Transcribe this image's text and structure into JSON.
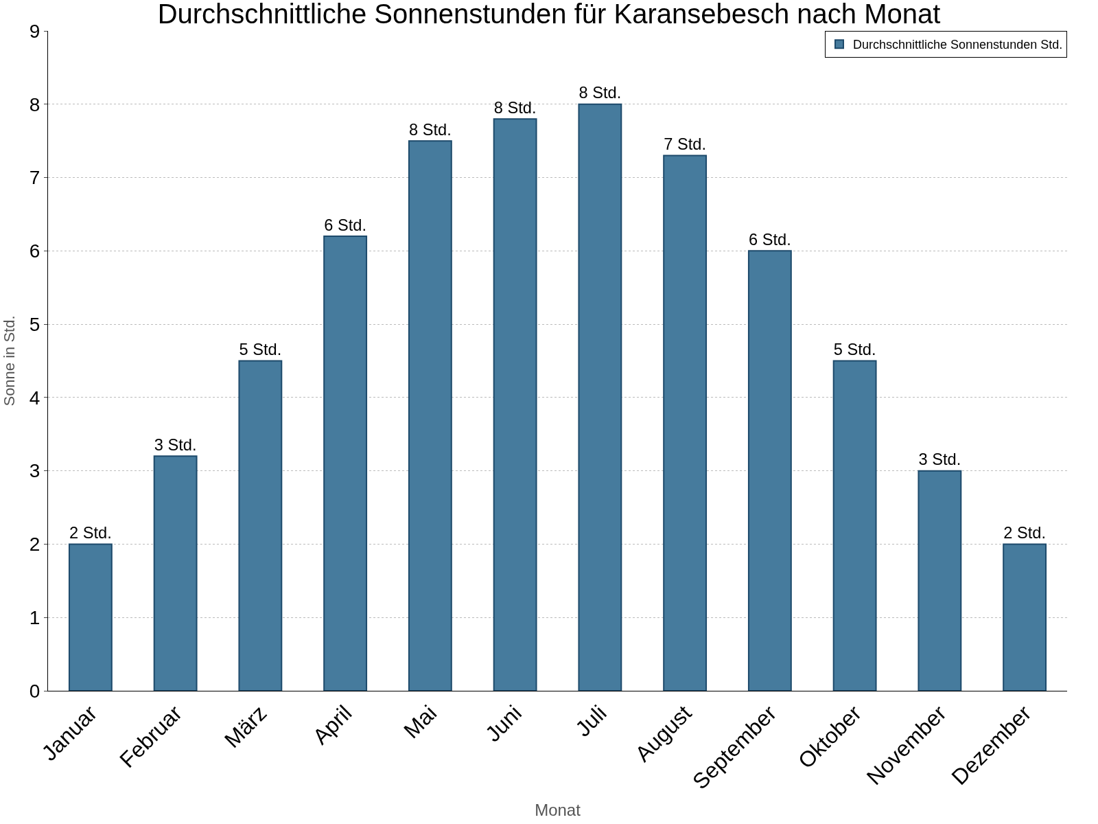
{
  "chart_data": {
    "type": "bar",
    "title": "Durchschnittliche Sonnenstunden für Karansebesch nach Monat",
    "xlabel": "Monat",
    "ylabel": "Sonne in Std.",
    "categories": [
      "Januar",
      "Februar",
      "März",
      "April",
      "Mai",
      "Juni",
      "Juli",
      "August",
      "September",
      "Oktober",
      "November",
      "Dezember"
    ],
    "series": [
      {
        "name": "Durchschnittliche Sonnenstunden Std.",
        "color": "#467b9d",
        "values": [
          2.0,
          3.2,
          4.5,
          6.2,
          7.5,
          7.8,
          8.0,
          7.3,
          6.0,
          4.5,
          3.0,
          2.0
        ],
        "value_labels": [
          "2 Std.",
          "3 Std.",
          "5 Std.",
          "6 Std.",
          "8 Std.",
          "8 Std.",
          "8 Std.",
          "7 Std.",
          "6 Std.",
          "5 Std.",
          "3 Std.",
          "2 Std."
        ]
      }
    ],
    "ylim": [
      0,
      9
    ],
    "yticks": [
      0,
      1,
      2,
      3,
      4,
      5,
      6,
      7,
      8,
      9
    ],
    "grid": "y",
    "legend": "top right"
  }
}
